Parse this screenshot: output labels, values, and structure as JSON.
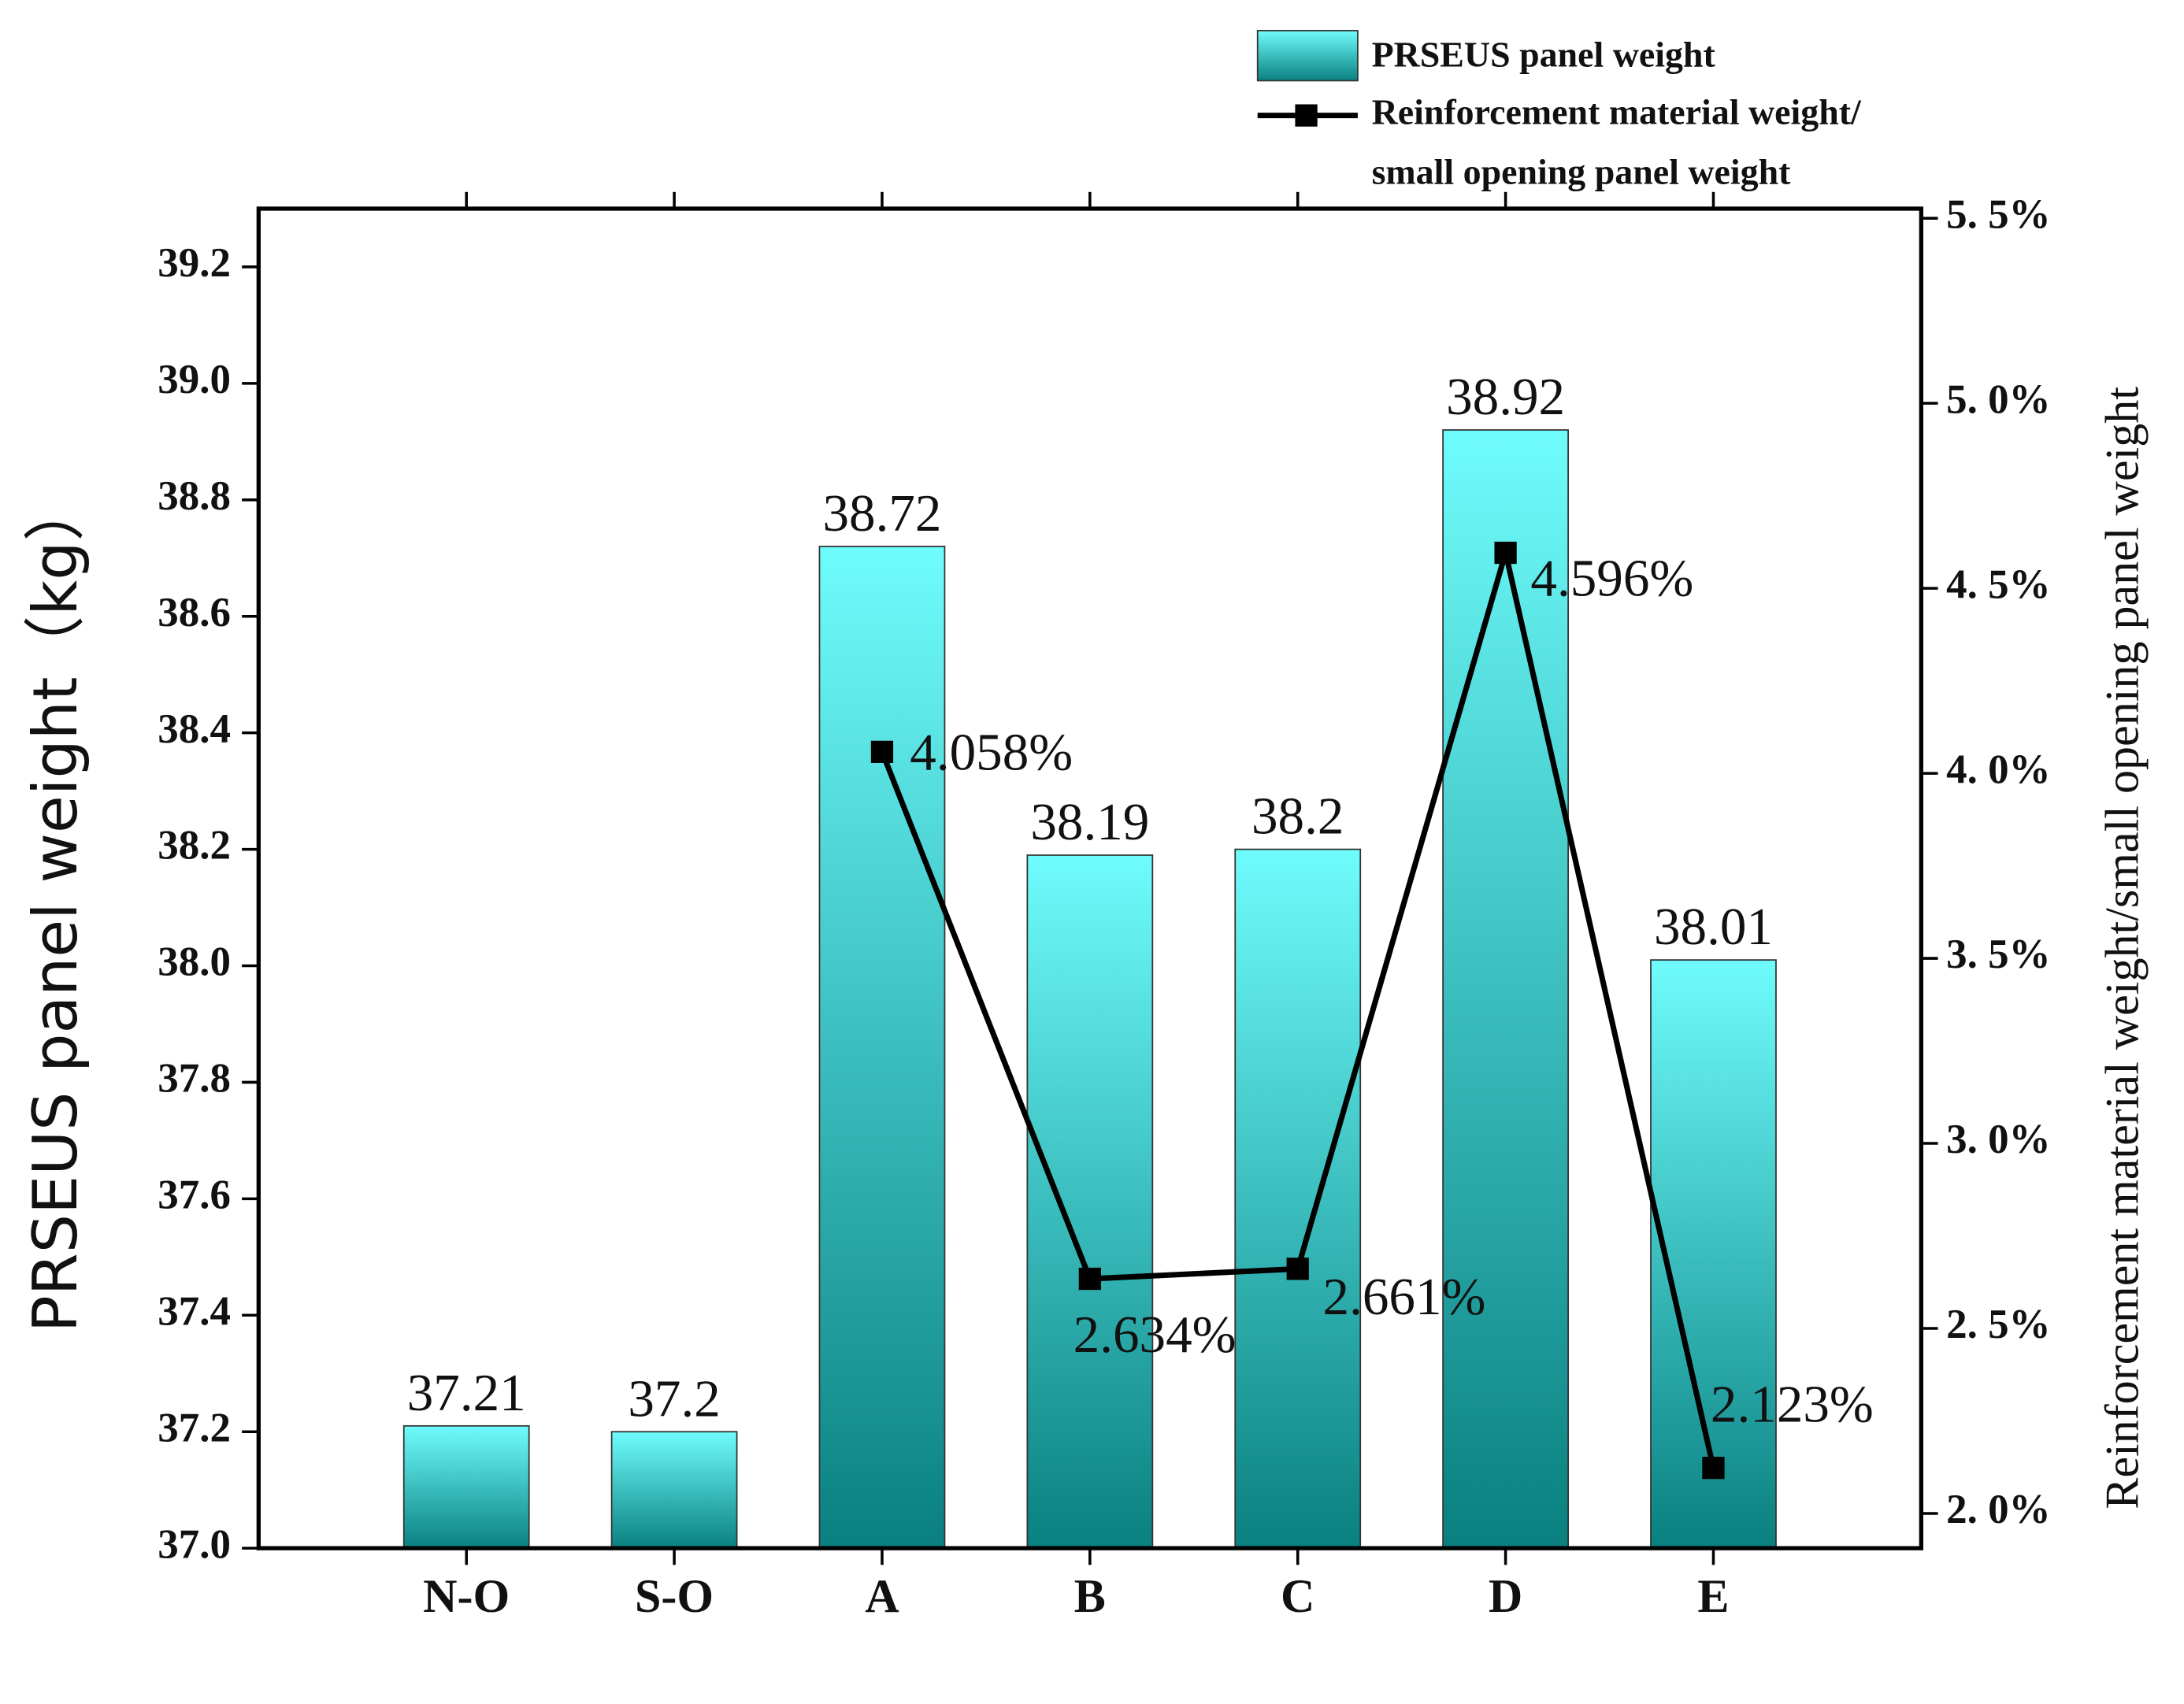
{
  "chart_data": {
    "type": "bar",
    "categories": [
      "N-O",
      "S-O",
      "A",
      "B",
      "C",
      "D",
      "E"
    ],
    "y_label": "PRSEUS panel weight（kg）",
    "y2_label": "Reinforcement material weight/small opening panel weight",
    "series": [
      {
        "name": "PRSEUS panel weight",
        "type": "bar",
        "color_top": "#6ffcfc",
        "color": "#0a8080",
        "values": [
          37.21,
          37.2,
          38.72,
          38.19,
          38.2,
          38.92,
          38.01
        ]
      },
      {
        "name": "Reinforcement material weight/ small opening panel weight",
        "type": "line",
        "axis": "y2",
        "color": "#000000",
        "values": [
          null,
          null,
          4.058,
          2.634,
          2.661,
          4.596,
          2.123
        ],
        "value_labels": [
          null,
          null,
          "4.058%",
          "2.634%",
          "2.661%",
          "4.596%",
          "2.123%"
        ]
      }
    ],
    "ylim": [
      37.0,
      39.3
    ],
    "yticks": [
      {
        "value": 37.0,
        "label": "37.0"
      },
      37.2,
      37.4,
      37.6,
      37.8,
      {
        "value": 38.0,
        "label": "38.0"
      },
      38.2,
      38.4,
      38.6,
      38.8,
      {
        "value": 39.0,
        "label": "39.0"
      },
      39.2
    ],
    "y2lim": [
      1.906,
      5.526
    ],
    "y2ticks": [
      {
        "value": 2.0,
        "label": "2. 0%"
      },
      {
        "value": 2.5,
        "label": "2. 5%"
      },
      {
        "value": 3.0,
        "label": "3. 0%"
      },
      {
        "value": 3.5,
        "label": "3. 5%"
      },
      {
        "value": 4.0,
        "label": "4. 0%"
      },
      {
        "value": 4.5,
        "label": "4. 5%"
      },
      {
        "value": 5.0,
        "label": "5. 0%"
      },
      {
        "value": 5.5,
        "label": "5. 5%"
      }
    ],
    "legend": "top-right"
  }
}
